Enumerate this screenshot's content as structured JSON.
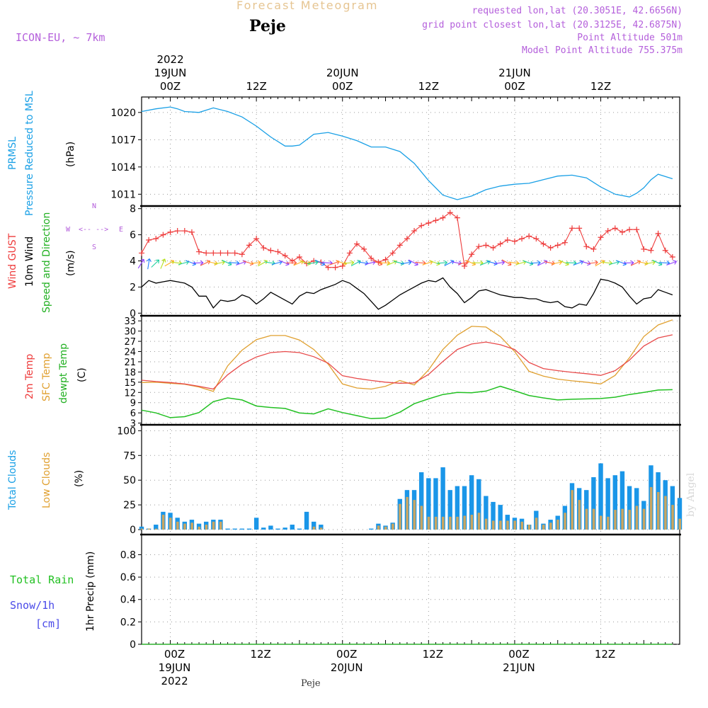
{
  "header": {
    "title": "Forecast Meteogram",
    "place": "Peje",
    "model": "ICON-EU, ~ 7km",
    "requested": "requested lon,lat (20.3051E, 42.6656N)",
    "gridpoint": "grid point closest lon,lat (20.3125E, 42.6875N)",
    "point_altitude": "Point Altitude 501m",
    "model_altitude": "Model Point Altitude 755.375m",
    "watermark": "by Angel",
    "bottom_place": "Peje"
  },
  "time_axis": {
    "top_labels": [
      {
        "hour": 0,
        "lines": [
          "2022",
          "19JUN",
          "00Z"
        ]
      },
      {
        "hour": 12,
        "lines": [
          "12Z"
        ]
      },
      {
        "hour": 24,
        "lines": [
          "20JUN",
          "00Z"
        ]
      },
      {
        "hour": 36,
        "lines": [
          "12Z"
        ]
      },
      {
        "hour": 48,
        "lines": [
          "21JUN",
          "00Z"
        ]
      },
      {
        "hour": 60,
        "lines": [
          "12Z"
        ]
      }
    ],
    "bottom_labels": [
      {
        "hour": 0,
        "lines": [
          "00Z",
          "19JUN",
          "2022"
        ]
      },
      {
        "hour": 12,
        "lines": [
          "12Z"
        ]
      },
      {
        "hour": 24,
        "lines": [
          "00Z",
          "20JUN"
        ]
      },
      {
        "hour": 36,
        "lines": [
          "12Z"
        ]
      },
      {
        "hour": 48,
        "lines": [
          "00Z",
          "21JUN"
        ]
      },
      {
        "hour": 60,
        "lines": [
          "12Z"
        ]
      }
    ]
  },
  "labels": {
    "pressure": {
      "a": "PRMSL",
      "b": "Pressure Reduced to MSL",
      "unit": "(hPa)"
    },
    "wind": {
      "gust": "Wind GUST",
      "wind10": "10m Wind",
      "speed": "Speed and Direction",
      "unit": "(m/s)",
      "compass": {
        "n": "N",
        "s": "S",
        "w": "W",
        "e": "E",
        "ns": "^ | v",
        "we": "<-- -->"
      }
    },
    "temp": {
      "t2m": "2m Temp",
      "sfc": "SFC Temp",
      "dew": "dewpt Temp",
      "unit": "(C)"
    },
    "clouds": {
      "total": "Total Clouds",
      "low": "Low Clouds",
      "unit": "(%)"
    },
    "precip": {
      "rain": "Total Rain",
      "snow": "Snow/1h",
      "cm": "[cm]",
      "unit": "1hr Precip (mm)"
    }
  },
  "colors": {
    "pressure": "#1aa0e6",
    "gust": "#ee3b3b",
    "wind": "#000000",
    "t2m": "#e84a4a",
    "sfc": "#e0a030",
    "dew": "#22c022",
    "total_clouds": "#1a96e8",
    "low_clouds": "#c9a662",
    "meta": "#b45fdb"
  },
  "chart_data": [
    {
      "type": "line",
      "title": "PRMSL Pressure Reduced to MSL",
      "ylabel": "(hPa)",
      "yticks": [
        1011,
        1014,
        1017,
        1020
      ],
      "ylim": [
        1009.7,
        1021.7
      ],
      "x": [
        -4,
        -2,
        0,
        1,
        2,
        4,
        6,
        8,
        10,
        12,
        14,
        16,
        17,
        18,
        20,
        22,
        24,
        26,
        28,
        30,
        32,
        34,
        36,
        38,
        40,
        42,
        44,
        46,
        48,
        50,
        52,
        54,
        56,
        58,
        60,
        62,
        64,
        65,
        66,
        67,
        68,
        70
      ],
      "series": [
        {
          "name": "PRMSL",
          "values": [
            1020.1,
            1020.4,
            1020.6,
            1020.4,
            1020.1,
            1020,
            1020.5,
            1020.1,
            1019.5,
            1018.5,
            1017.3,
            1016.3,
            1016.3,
            1016.4,
            1017.6,
            1017.8,
            1017.4,
            1016.9,
            1016.2,
            1016.2,
            1015.7,
            1014.4,
            1012.5,
            1010.9,
            1010.4,
            1010.8,
            1011.5,
            1011.9,
            1012.1,
            1012.2,
            1012.6,
            1013.0,
            1013.1,
            1012.8,
            1011.8,
            1011.0,
            1010.7,
            1011.1,
            1011.7,
            1012.6,
            1013.2,
            1012.7
          ]
        }
      ]
    },
    {
      "type": "line",
      "title": "Wind GUST / 10m Wind Speed and Direction",
      "ylabel": "(m/s)",
      "yticks": [
        0,
        2,
        4,
        6,
        8
      ],
      "ylim": [
        -0.2,
        8.2
      ],
      "x": [
        -4,
        -3,
        -2,
        -1,
        0,
        1,
        2,
        3,
        4,
        5,
        6,
        7,
        8,
        9,
        10,
        11,
        12,
        13,
        14,
        15,
        16,
        17,
        18,
        19,
        20,
        21,
        22,
        23,
        24,
        25,
        26,
        27,
        28,
        29,
        30,
        31,
        32,
        33,
        34,
        35,
        36,
        37,
        38,
        39,
        40,
        41,
        42,
        43,
        44,
        45,
        46,
        47,
        48,
        49,
        50,
        51,
        52,
        53,
        54,
        55,
        56,
        57,
        58,
        59,
        60,
        61,
        62,
        63,
        64,
        65,
        66,
        67,
        68,
        69,
        70
      ],
      "series": [
        {
          "name": "Wind GUST",
          "values": [
            4.6,
            5.6,
            5.7,
            6.0,
            6.2,
            6.3,
            6.3,
            6.2,
            4.7,
            4.6,
            4.6,
            4.6,
            4.6,
            4.6,
            4.5,
            5.2,
            5.7,
            5.0,
            4.8,
            4.7,
            4.4,
            4.0,
            4.3,
            3.8,
            4.0,
            3.9,
            3.5,
            3.5,
            3.6,
            4.6,
            5.3,
            4.9,
            4.2,
            3.9,
            4.1,
            4.6,
            5.2,
            5.7,
            6.3,
            6.7,
            6.9,
            7.1,
            7.3,
            7.7,
            7.3,
            3.6,
            4.5,
            5.1,
            5.2,
            5.0,
            5.3,
            5.6,
            5.5,
            5.7,
            5.9,
            5.7,
            5.3,
            5.0,
            5.2,
            5.4,
            6.5,
            6.5,
            5.1,
            4.9,
            5.8,
            6.3,
            6.5,
            6.2,
            6.4,
            6.4,
            4.9,
            4.8,
            6.1,
            4.8,
            4.3
          ]
        },
        {
          "name": "10m Wind",
          "values": [
            2.0,
            2.5,
            2.3,
            2.4,
            2.5,
            2.4,
            2.3,
            2.0,
            1.3,
            1.3,
            0.4,
            1.0,
            0.9,
            1.0,
            1.4,
            1.2,
            0.7,
            1.1,
            1.6,
            1.3,
            1.0,
            0.7,
            1.3,
            1.6,
            1.5,
            1.8,
            2.0,
            2.2,
            2.5,
            2.3,
            1.9,
            1.5,
            0.9,
            0.3,
            0.6,
            1.0,
            1.4,
            1.7,
            2.0,
            2.3,
            2.5,
            2.4,
            2.7,
            2.0,
            1.5,
            0.8,
            1.2,
            1.7,
            1.8,
            1.6,
            1.4,
            1.3,
            1.2,
            1.2,
            1.1,
            1.1,
            0.9,
            0.8,
            0.9,
            0.5,
            0.4,
            0.7,
            0.6,
            1.5,
            2.6,
            2.5,
            2.3,
            2.0,
            1.3,
            0.7,
            1.1,
            1.2,
            1.8,
            1.6,
            1.4
          ]
        }
      ]
    },
    {
      "type": "line",
      "title": "2m Temp / SFC Temp / dewpt Temp",
      "ylabel": "(C)",
      "yticks": [
        3,
        6,
        9,
        12,
        15,
        18,
        21,
        24,
        27,
        30,
        33
      ],
      "ylim": [
        2.5,
        34.5
      ],
      "x": [
        -4,
        -2,
        0,
        2,
        4,
        6,
        8,
        10,
        12,
        14,
        16,
        18,
        20,
        22,
        24,
        26,
        28,
        30,
        32,
        34,
        36,
        38,
        40,
        42,
        44,
        46,
        48,
        50,
        52,
        54,
        56,
        58,
        60,
        62,
        64,
        66,
        68,
        70
      ],
      "series": [
        {
          "name": "2m Temp",
          "values": [
            15.6,
            15.2,
            14.9,
            14.5,
            13.8,
            13.0,
            17.2,
            20.3,
            22.4,
            23.7,
            24.0,
            23.7,
            22.5,
            20.6,
            16.9,
            16.1,
            15.5,
            15.0,
            14.7,
            14.8,
            17.3,
            21.1,
            24.6,
            26.2,
            26.8,
            26.0,
            24.6,
            20.8,
            19.0,
            18.4,
            17.9,
            17.5,
            17.0,
            18.4,
            21.5,
            25.6,
            28.0,
            28.9
          ]
        },
        {
          "name": "SFC Temp",
          "values": [
            14.9,
            15.0,
            14.7,
            14.4,
            13.6,
            12.3,
            19.8,
            24.4,
            27.5,
            28.7,
            28.7,
            27.4,
            24.6,
            20.3,
            14.5,
            13.3,
            13.0,
            13.8,
            15.5,
            14.2,
            18.6,
            24.6,
            28.8,
            31.4,
            31.2,
            28.4,
            24.0,
            18.2,
            16.8,
            15.9,
            15.4,
            15.0,
            14.5,
            17.0,
            22.2,
            28.4,
            31.8,
            33.3
          ]
        },
        {
          "name": "dewpt Temp",
          "values": [
            6.8,
            6.0,
            4.6,
            4.9,
            6.1,
            9.3,
            10.4,
            9.8,
            8.0,
            7.6,
            7.3,
            6.0,
            5.7,
            7.2,
            6.1,
            5.2,
            4.3,
            4.5,
            6.2,
            8.7,
            10.1,
            11.4,
            12.0,
            11.9,
            12.4,
            13.8,
            12.5,
            11.1,
            10.4,
            9.8,
            10.0,
            10.1,
            10.2,
            10.6,
            11.4,
            12.0,
            12.7,
            12.8
          ]
        }
      ]
    },
    {
      "type": "bar",
      "title": "Total Clouds / Low Clouds",
      "ylabel": "(%)",
      "yticks": [
        0,
        25,
        50,
        75,
        100
      ],
      "ylim": [
        -5,
        106
      ],
      "x": [
        -4,
        -3,
        -2,
        -1,
        0,
        1,
        2,
        3,
        4,
        5,
        6,
        7,
        8,
        9,
        10,
        11,
        12,
        13,
        14,
        15,
        16,
        17,
        18,
        19,
        20,
        21,
        22,
        23,
        24,
        25,
        26,
        27,
        28,
        29,
        30,
        31,
        32,
        33,
        34,
        35,
        36,
        37,
        38,
        39,
        40,
        41,
        42,
        43,
        44,
        45,
        46,
        47,
        48,
        49,
        50,
        51,
        52,
        53,
        54,
        55,
        56,
        57,
        58,
        59,
        60,
        61,
        62,
        63,
        64,
        65,
        66,
        67,
        68,
        69,
        70,
        71
      ],
      "series": [
        {
          "name": "Total Clouds",
          "values": [
            3,
            1,
            5,
            18,
            17,
            12,
            8,
            10,
            6,
            8,
            10,
            10,
            1,
            1,
            1,
            1,
            12,
            2,
            4,
            1,
            2,
            5,
            1,
            18,
            8,
            5,
            0,
            0,
            0,
            0,
            0,
            0,
            1,
            6,
            4,
            7,
            31,
            40,
            40,
            58,
            52,
            52,
            63,
            40,
            44,
            44,
            55,
            51,
            34,
            28,
            25,
            15,
            12,
            11,
            5,
            19,
            6,
            10,
            14,
            24,
            47,
            42,
            40,
            53,
            67,
            52,
            55,
            59,
            44,
            42,
            29,
            65,
            58,
            50,
            44,
            32
          ]
        },
        {
          "name": "Low Clouds",
          "values": [
            1,
            1,
            1,
            15,
            12,
            8,
            6,
            7,
            3,
            5,
            8,
            8,
            0,
            0,
            0,
            0,
            0,
            0,
            0,
            0,
            0,
            0,
            0,
            0,
            3,
            2,
            0,
            0,
            0,
            0,
            0,
            0,
            0,
            4,
            3,
            6,
            26,
            33,
            30,
            24,
            13,
            13,
            13,
            13,
            13,
            14,
            15,
            17,
            11,
            9,
            9,
            9,
            9,
            8,
            5,
            12,
            5,
            7,
            10,
            17,
            40,
            30,
            21,
            21,
            14,
            13,
            20,
            21,
            20,
            24,
            21,
            43,
            38,
            34,
            25,
            11
          ]
        }
      ]
    },
    {
      "type": "line",
      "title": "1hr Precip (mm)",
      "ylabel": "1hr Precip (mm)",
      "yticks": [
        0,
        0.2,
        0.4,
        0.6,
        0.8
      ],
      "ylim": [
        0,
        0.98
      ],
      "x": [
        -4,
        70
      ],
      "series": [
        {
          "name": "Total Rain",
          "values": [
            0,
            0
          ]
        },
        {
          "name": "Snow/1h",
          "values": [
            0,
            0
          ]
        }
      ]
    }
  ]
}
